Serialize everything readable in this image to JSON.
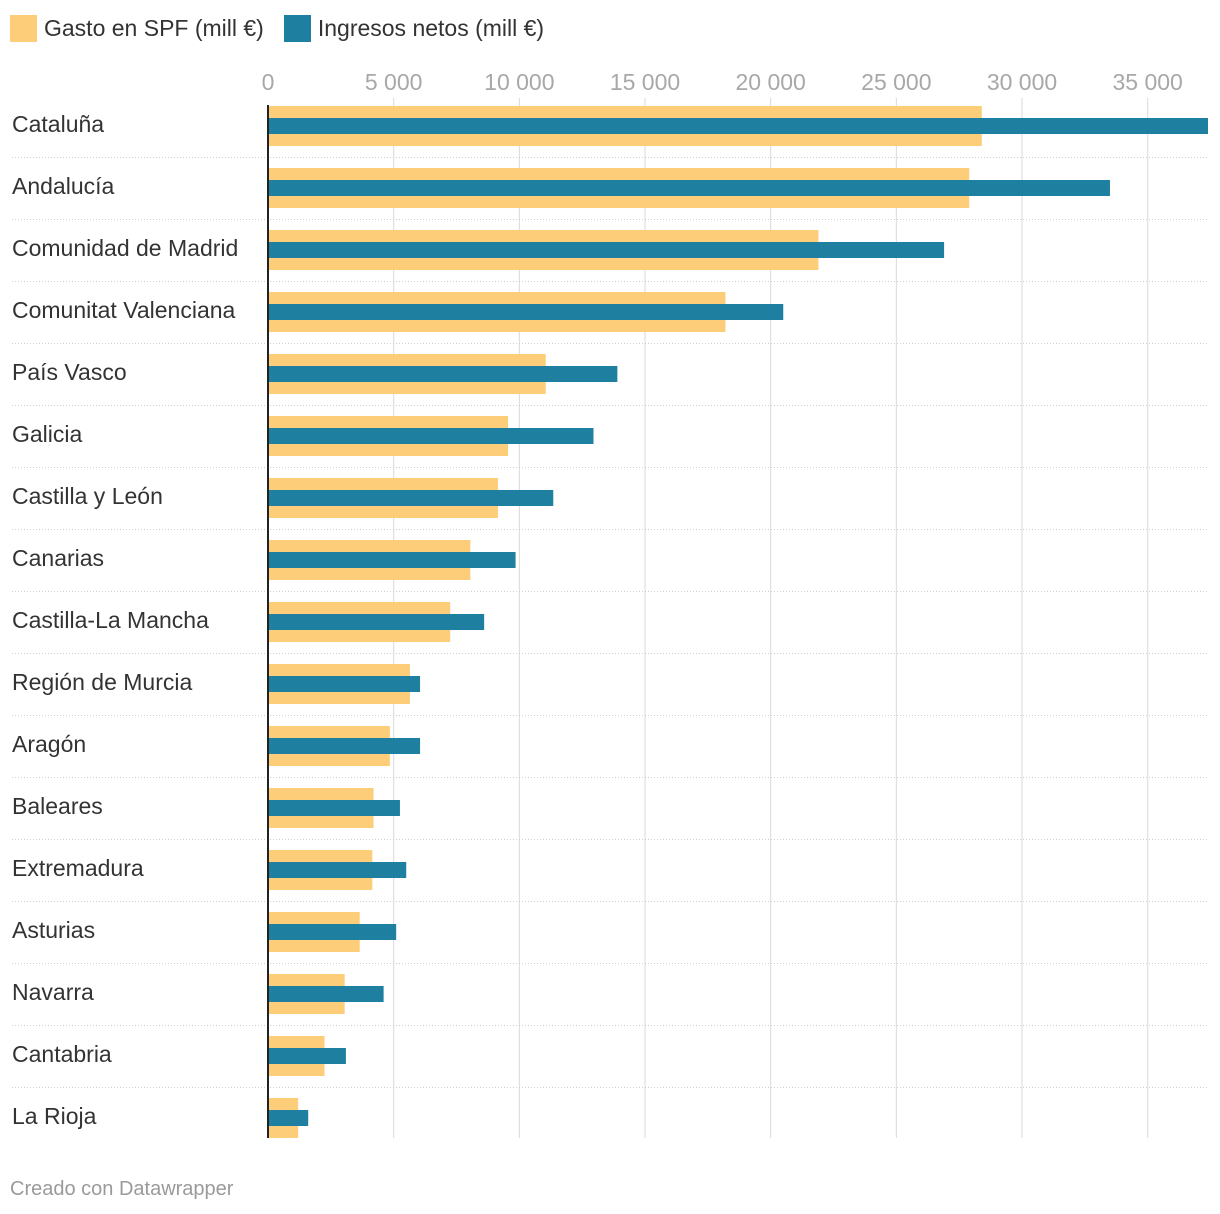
{
  "legend": {
    "gasto_label": "Gasto en SPF (mill €)",
    "ingresos_label": "Ingresos netos (mill €)"
  },
  "credit": "Creado con Datawrapper",
  "colors": {
    "gasto": "#FECD7A",
    "ingresos": "#1F7FA0",
    "grid": "#d9d9d9",
    "tick_text": "#a8a8a8",
    "label_text": "#333333"
  },
  "chart_data": {
    "type": "bar",
    "orientation": "horizontal",
    "categories": [
      "Cataluña",
      "Andalucía",
      "Comunidad de Madrid",
      "Comunitat Valenciana",
      "País Vasco",
      "Galicia",
      "Castilla y León",
      "Canarias",
      "Castilla-La Mancha",
      "Región de Murcia",
      "Aragón",
      "Baleares",
      "Extremadura",
      "Asturias",
      "Navarra",
      "Cantabria",
      "La Rioja"
    ],
    "series": [
      {
        "name": "Gasto en SPF (mill €)",
        "values": [
          28400,
          27900,
          21900,
          18200,
          11050,
          9550,
          9150,
          8050,
          7250,
          5650,
          4850,
          4200,
          4150,
          3650,
          3050,
          2250,
          1200
        ]
      },
      {
        "name": "Ingresos netos (mill €)",
        "values": [
          37400,
          33500,
          26900,
          20500,
          13900,
          12950,
          11350,
          9850,
          8600,
          6050,
          6050,
          5250,
          5500,
          5100,
          4600,
          3100,
          1600
        ]
      }
    ],
    "xlim": [
      0,
      37400
    ],
    "xticks": [
      0,
      5000,
      10000,
      15000,
      20000,
      25000,
      30000,
      35000
    ],
    "xtick_labels": [
      "0",
      "5 000",
      "10 000",
      "15 000",
      "20 000",
      "25 000",
      "30 000",
      "35 000"
    ],
    "grid": true,
    "legend_position": "top-left"
  }
}
